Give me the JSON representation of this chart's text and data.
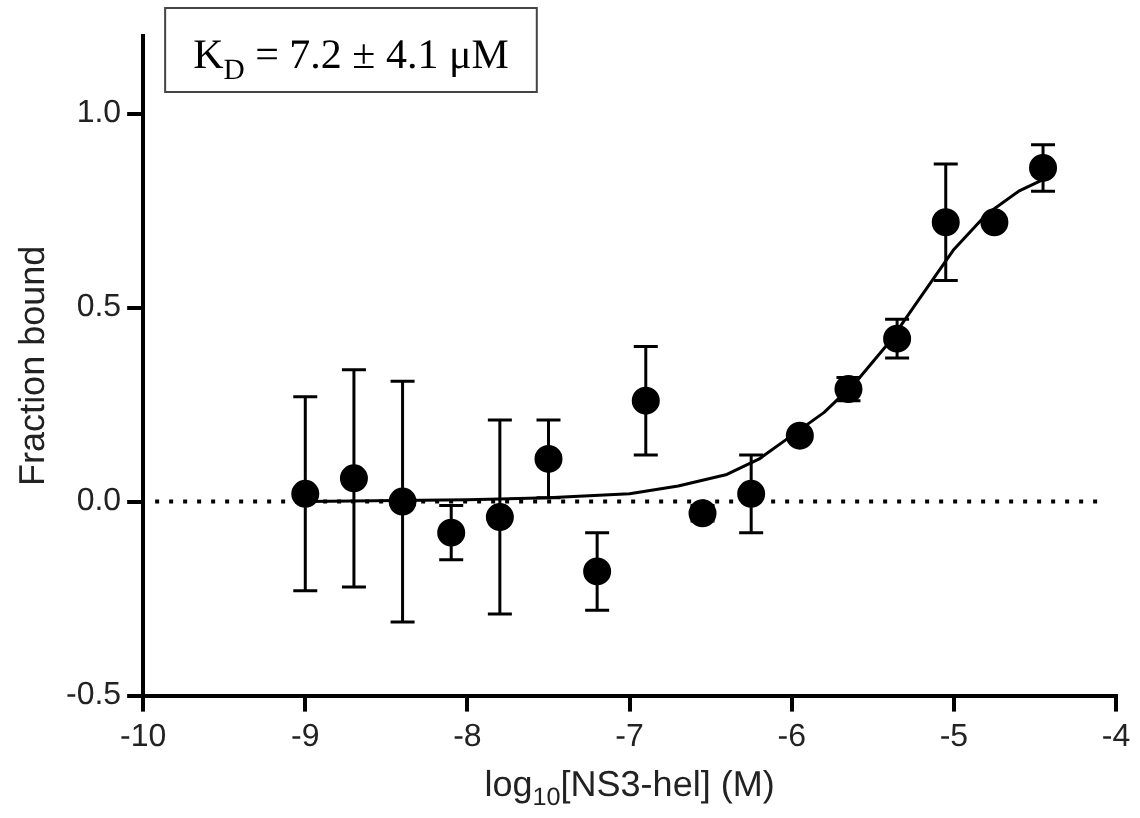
{
  "chart_data": {
    "type": "scatter",
    "xlabel": "log$_{10}$[NS3-hel] (M)",
    "ylabel": "Fraction bound",
    "annotations": [
      "K$_{D}$ = 7.2 ± 4.1 μM"
    ],
    "xlim": [
      -10,
      -4
    ],
    "xticks": [
      -10,
      -9,
      -8,
      -7,
      -6,
      -5,
      -4
    ],
    "ylim": [
      -0.5,
      1.2
    ],
    "yticks": [
      {
        "value": -0.5,
        "label": "-0.5"
      },
      {
        "value": 0,
        "label": "0.0"
      },
      {
        "value": 0.5,
        "label": "0.5"
      },
      {
        "value": 1,
        "label": "1.0"
      }
    ],
    "grid": false,
    "legend": false,
    "marker": "circle",
    "ref_lines": [
      {
        "axis": "y",
        "value": 0,
        "color": "#000000",
        "line_style": "dotted"
      }
    ],
    "series": [
      {
        "color": "#000000",
        "x": [
          -9.0,
          -8.7,
          -8.4,
          -8.1,
          -7.8,
          -7.5,
          -7.2,
          -6.9,
          -6.55,
          -6.25,
          -5.95,
          -5.65,
          -5.35,
          -5.05,
          -4.75,
          -4.45
        ],
        "values": [
          0.02,
          0.06,
          0.0,
          -0.08,
          -0.04,
          0.11,
          -0.18,
          0.26,
          -0.03,
          0.02,
          0.17,
          0.29,
          0.42,
          0.72,
          0.72,
          0.86
        ],
        "errors": [
          0.25,
          0.28,
          0.31,
          0.07,
          0.25,
          0.1,
          0.1,
          0.14,
          0.02,
          0.1,
          null,
          0.03,
          0.05,
          0.15,
          null,
          0.06
        ]
      },
      {
        "type": "line",
        "color": "#000000",
        "marker": "none",
        "line_style": "solid",
        "x": [
          -9.0,
          -8.0,
          -7.5,
          -7.0,
          -6.7,
          -6.4,
          -6.2,
          -6.0,
          -5.8,
          -5.6,
          -5.4,
          -5.2,
          -5.0,
          -4.8,
          -4.6,
          -4.45
        ],
        "values": [
          0.0,
          0.005,
          0.01,
          0.02,
          0.04,
          0.07,
          0.11,
          0.17,
          0.23,
          0.31,
          0.41,
          0.53,
          0.65,
          0.74,
          0.8,
          0.83
        ]
      }
    ]
  }
}
